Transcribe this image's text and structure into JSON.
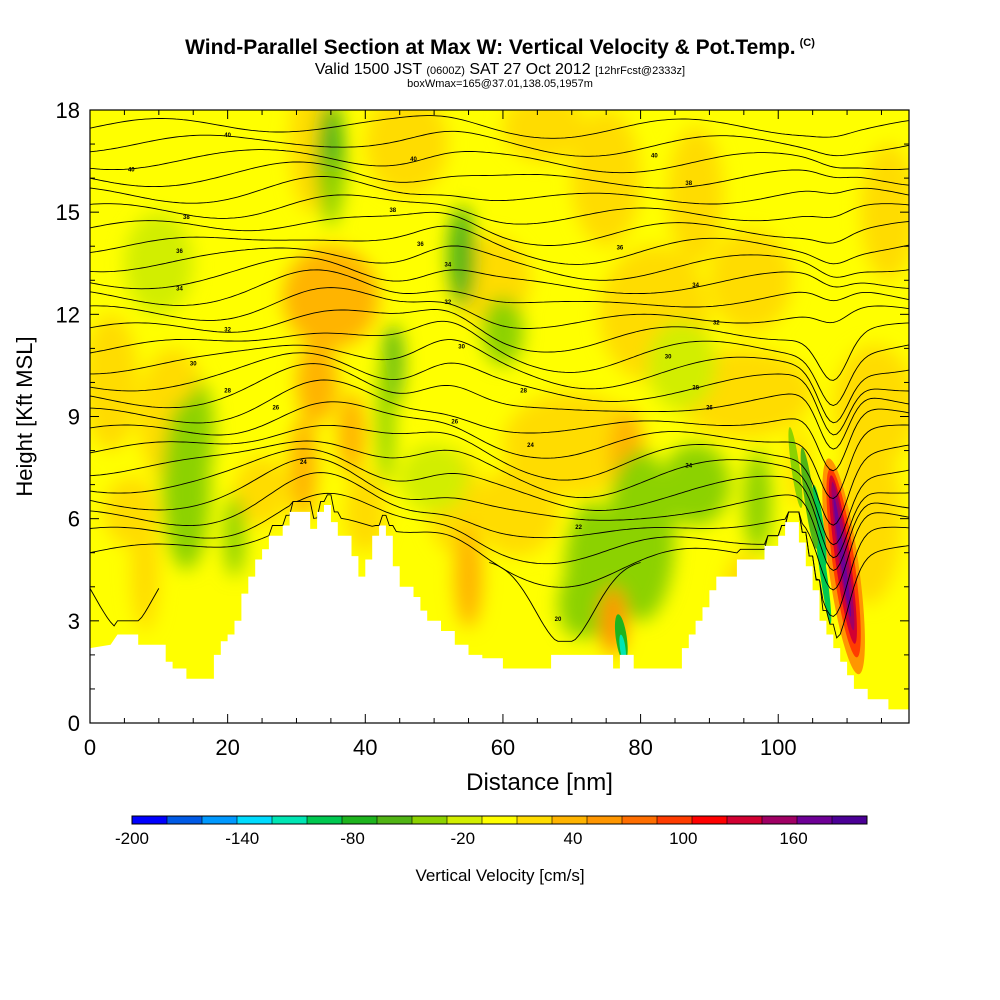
{
  "header": {
    "title": "Wind-Parallel Section at Max W: Vertical Velocity & Pot.Temp.",
    "copyright": "(C)",
    "valid_prefix": "Valid 1500 JST",
    "valid_utc": "(0600Z)",
    "valid_date": "SAT 27 Oct 2012",
    "forecast": "[12hrFcst@2333z]",
    "box_info": "boxWmax=165@37.01,138.05,1957m"
  },
  "chart_data": {
    "type": "heatmap",
    "xlabel": "Distance [nm]",
    "ylabel": "Height [Kft MSL]",
    "xlim": [
      0,
      119
    ],
    "ylim": [
      0,
      18
    ],
    "x_ticks": [
      0,
      20,
      40,
      60,
      80,
      100
    ],
    "y_ticks": [
      0,
      3,
      6,
      9,
      12,
      15,
      18
    ],
    "colorbar": {
      "label": "Vertical Velocity [cm/s]",
      "min": -200,
      "max": 200,
      "tick_labels": [
        "-200",
        "-140",
        "-80",
        "-20",
        "40",
        "100",
        "160"
      ],
      "tick_values": [
        -200,
        -140,
        -80,
        -20,
        40,
        100,
        160
      ],
      "colors": [
        "#0000ff",
        "#005ae6",
        "#0099ff",
        "#00dcff",
        "#00e6b4",
        "#00c850",
        "#1eb41e",
        "#50b414",
        "#8cd200",
        "#d2ee00",
        "#ffff00",
        "#ffdc00",
        "#ffb400",
        "#ff9600",
        "#ff6e00",
        "#ff3c00",
        "#ff0000",
        "#d20032",
        "#a00064",
        "#6e0096",
        "#4b0096"
      ]
    },
    "terrain_kft": [
      [
        0,
        2.2
      ],
      [
        3,
        2.3
      ],
      [
        4,
        2.6
      ],
      [
        7,
        2.6
      ],
      [
        7,
        2.3
      ],
      [
        11,
        2.3
      ],
      [
        11,
        1.8
      ],
      [
        12,
        1.8
      ],
      [
        12,
        1.6
      ],
      [
        14,
        1.6
      ],
      [
        14,
        1.3
      ],
      [
        18,
        1.3
      ],
      [
        18,
        2.0
      ],
      [
        19,
        2.0
      ],
      [
        19,
        2.4
      ],
      [
        20,
        2.4
      ],
      [
        20,
        2.6
      ],
      [
        21,
        2.6
      ],
      [
        21,
        3.0
      ],
      [
        22,
        3.0
      ],
      [
        22,
        3.8
      ],
      [
        23,
        3.8
      ],
      [
        23,
        4.3
      ],
      [
        24,
        4.3
      ],
      [
        24,
        4.8
      ],
      [
        25,
        4.8
      ],
      [
        25,
        5.1
      ],
      [
        26,
        5.1
      ],
      [
        26,
        5.5
      ],
      [
        28,
        5.5
      ],
      [
        28,
        5.8
      ],
      [
        29,
        5.8
      ],
      [
        29,
        6.2
      ],
      [
        32,
        6.2
      ],
      [
        32,
        5.7
      ],
      [
        33,
        5.7
      ],
      [
        33,
        6.2
      ],
      [
        34,
        6.2
      ],
      [
        34,
        6.4
      ],
      [
        35,
        6.4
      ],
      [
        35,
        5.9
      ],
      [
        36,
        5.9
      ],
      [
        36,
        5.5
      ],
      [
        38,
        5.5
      ],
      [
        38,
        4.9
      ],
      [
        39,
        4.9
      ],
      [
        39,
        4.3
      ],
      [
        40,
        4.3
      ],
      [
        40,
        4.8
      ],
      [
        41,
        4.8
      ],
      [
        41,
        5.5
      ],
      [
        42,
        5.5
      ],
      [
        42,
        5.8
      ],
      [
        43,
        5.8
      ],
      [
        43,
        5.5
      ],
      [
        44,
        5.5
      ],
      [
        44,
        4.6
      ],
      [
        45,
        4.6
      ],
      [
        45,
        4.0
      ],
      [
        47,
        4.0
      ],
      [
        47,
        3.7
      ],
      [
        48,
        3.7
      ],
      [
        48,
        3.3
      ],
      [
        49,
        3.3
      ],
      [
        49,
        3.0
      ],
      [
        51,
        3.0
      ],
      [
        51,
        2.7
      ],
      [
        53,
        2.7
      ],
      [
        53,
        2.3
      ],
      [
        55,
        2.3
      ],
      [
        55,
        2.0
      ],
      [
        57,
        2.0
      ],
      [
        57,
        1.9
      ],
      [
        60,
        1.9
      ],
      [
        60,
        1.6
      ],
      [
        67,
        1.6
      ],
      [
        67,
        2.0
      ],
      [
        76,
        2.0
      ],
      [
        76,
        1.6
      ],
      [
        77,
        1.6
      ],
      [
        77,
        2.0
      ],
      [
        79,
        2.0
      ],
      [
        79,
        1.6
      ],
      [
        86,
        1.6
      ],
      [
        86,
        2.2
      ],
      [
        87,
        2.2
      ],
      [
        87,
        2.6
      ],
      [
        88,
        2.6
      ],
      [
        88,
        3.0
      ],
      [
        89,
        3.0
      ],
      [
        89,
        3.4
      ],
      [
        90,
        3.4
      ],
      [
        90,
        3.9
      ],
      [
        91,
        3.9
      ],
      [
        91,
        4.3
      ],
      [
        94,
        4.3
      ],
      [
        94,
        4.8
      ],
      [
        98,
        4.8
      ],
      [
        98,
        5.2
      ],
      [
        100,
        5.2
      ],
      [
        100,
        5.5
      ],
      [
        101,
        5.5
      ],
      [
        101,
        5.9
      ],
      [
        103,
        5.9
      ],
      [
        103,
        5.3
      ],
      [
        104,
        5.3
      ],
      [
        104,
        4.6
      ],
      [
        105,
        4.6
      ],
      [
        105,
        3.9
      ],
      [
        106,
        3.9
      ],
      [
        106,
        3.0
      ],
      [
        107,
        3.0
      ],
      [
        107,
        2.6
      ],
      [
        108,
        2.6
      ],
      [
        108,
        2.2
      ],
      [
        109,
        2.2
      ],
      [
        109,
        1.8
      ],
      [
        110,
        1.8
      ],
      [
        110,
        1.4
      ],
      [
        111,
        1.4
      ],
      [
        111,
        1.0
      ],
      [
        113,
        1.0
      ],
      [
        113,
        0.7
      ],
      [
        116,
        0.7
      ],
      [
        116,
        0.4
      ],
      [
        119,
        0.4
      ]
    ],
    "contour_labels": [
      "40",
      "38",
      "36",
      "34",
      "32",
      "30",
      "28",
      "26",
      "24",
      "22",
      "20"
    ]
  },
  "icons": {
    "colorbar": "colorbar-gradient"
  }
}
